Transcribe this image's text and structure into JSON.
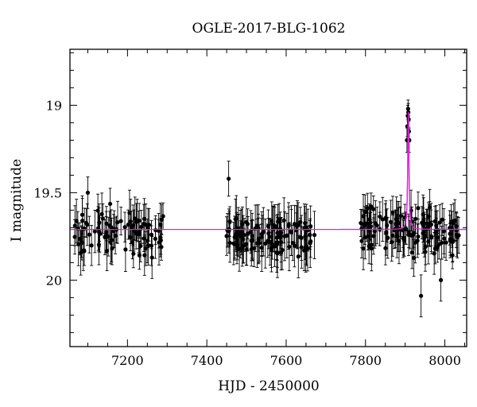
{
  "chart_data": {
    "type": "scatter",
    "title": "OGLE-2017-BLG-1062",
    "xlabel": "HJD - 2450000",
    "ylabel": "I magnitude",
    "xlim": [
      7055,
      8055
    ],
    "ylim": [
      20.38,
      18.68
    ],
    "y_inverted": true,
    "x_ticks": [
      7200,
      7400,
      7600,
      7800,
      8000
    ],
    "y_ticks": [
      19,
      19.5,
      20
    ],
    "y_tick_labels": [
      "19",
      "19.5",
      "20"
    ],
    "grid": false,
    "data_color": "#000000",
    "model_color": "#e020e0",
    "model": {
      "baseline_mag": 19.71,
      "peak_hjd": 7908,
      "peak_mag": 19.04,
      "duration_days": 6
    },
    "seasons": [
      {
        "start": 7066,
        "end": 7290,
        "points": 90,
        "mean_mag": 19.73,
        "scatter": 0.1,
        "err": 0.1
      },
      {
        "start": 7448,
        "end": 7680,
        "points": 120,
        "mean_mag": 19.74,
        "scatter": 0.1,
        "err": 0.11
      },
      {
        "start": 7788,
        "end": 8040,
        "points": 130,
        "mean_mag": 19.72,
        "scatter": 0.1,
        "err": 0.1
      }
    ],
    "peak_points": [
      {
        "x": 7905.5,
        "y": 19.12,
        "err": 0.06
      },
      {
        "x": 7906.5,
        "y": 19.06,
        "err": 0.06
      },
      {
        "x": 7907.3,
        "y": 19.02,
        "err": 0.05
      },
      {
        "x": 7908.0,
        "y": 19.04,
        "err": 0.05
      },
      {
        "x": 7908.8,
        "y": 19.08,
        "err": 0.06
      },
      {
        "x": 7909.5,
        "y": 19.15,
        "err": 0.06
      },
      {
        "x": 7910.3,
        "y": 19.2,
        "err": 0.07
      },
      {
        "x": 7904.5,
        "y": 19.2,
        "err": 0.07
      }
    ],
    "outliers": [
      {
        "x": 7455,
        "y": 19.42,
        "err": 0.1
      },
      {
        "x": 7100,
        "y": 19.5,
        "err": 0.09
      },
      {
        "x": 7940,
        "y": 20.09,
        "err": 0.12
      },
      {
        "x": 7990,
        "y": 20.0,
        "err": 0.12
      }
    ]
  }
}
